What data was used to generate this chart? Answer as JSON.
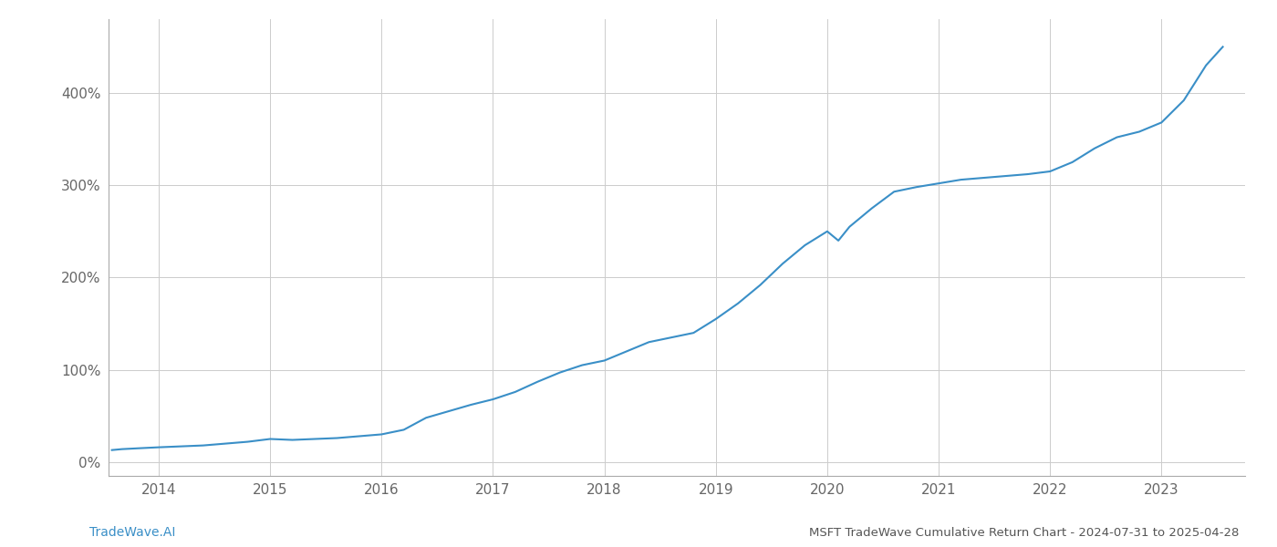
{
  "title": "MSFT TradeWave Cumulative Return Chart - 2024-07-31 to 2025-04-28",
  "watermark": "TradeWave.AI",
  "line_color": "#3a8fc7",
  "background_color": "#ffffff",
  "grid_color": "#cccccc",
  "x_years": [
    2014,
    2015,
    2016,
    2017,
    2018,
    2019,
    2020,
    2021,
    2022,
    2023
  ],
  "y_ticks": [
    0,
    100,
    200,
    300,
    400
  ],
  "y_labels": [
    "0%",
    "100%",
    "200%",
    "300%",
    "400%"
  ],
  "ylim": [
    -15,
    480
  ],
  "xlim": [
    2013.55,
    2023.75
  ],
  "data_x": [
    2013.58,
    2013.67,
    2013.83,
    2014.0,
    2014.2,
    2014.4,
    2014.6,
    2014.8,
    2015.0,
    2015.2,
    2015.4,
    2015.6,
    2015.8,
    2016.0,
    2016.2,
    2016.4,
    2016.6,
    2016.8,
    2017.0,
    2017.2,
    2017.4,
    2017.6,
    2017.8,
    2018.0,
    2018.2,
    2018.4,
    2018.6,
    2018.8,
    2019.0,
    2019.2,
    2019.4,
    2019.6,
    2019.8,
    2020.0,
    2020.1,
    2020.2,
    2020.4,
    2020.6,
    2020.8,
    2021.0,
    2021.2,
    2021.4,
    2021.6,
    2021.8,
    2022.0,
    2022.2,
    2022.4,
    2022.6,
    2022.8,
    2023.0,
    2023.2,
    2023.4,
    2023.55
  ],
  "data_y": [
    13,
    14,
    15,
    16,
    17,
    18,
    20,
    22,
    25,
    24,
    25,
    26,
    28,
    30,
    35,
    48,
    55,
    62,
    68,
    76,
    87,
    97,
    105,
    110,
    120,
    130,
    135,
    140,
    155,
    172,
    192,
    215,
    235,
    250,
    240,
    255,
    275,
    293,
    298,
    302,
    306,
    308,
    310,
    312,
    315,
    325,
    340,
    352,
    358,
    368,
    392,
    430,
    450
  ]
}
